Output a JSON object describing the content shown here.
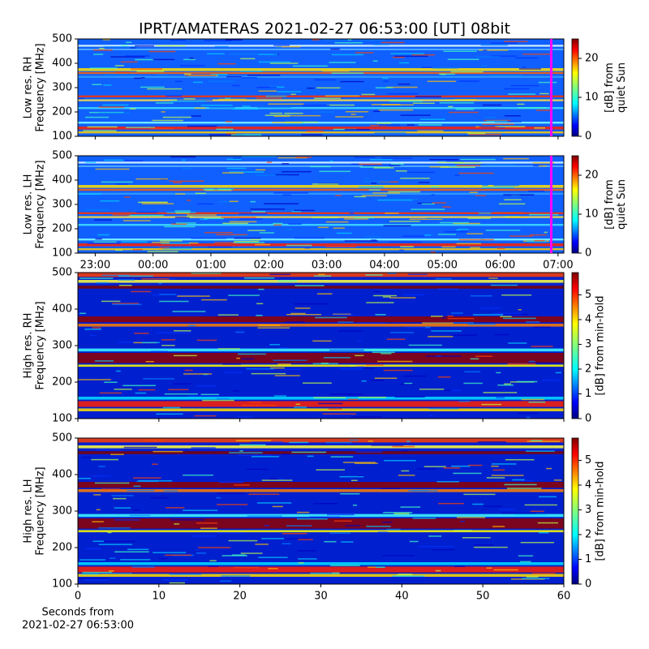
{
  "chart_data": [
    {
      "type": "heatmap",
      "title": "IPRT/AMATERAS 2021-02-27 06:53:00 [UT]   08bit",
      "ylabel": [
        "Low res. RH",
        "Frequency [MHz]"
      ],
      "ylim": [
        100,
        500
      ],
      "yticks": [
        100,
        200,
        300,
        400,
        500
      ],
      "xlim": [
        22.7,
        31.1
      ],
      "xticks": [
        23,
        24,
        25,
        26,
        27,
        28,
        29,
        30,
        31
      ],
      "xtick_labels": false,
      "marker_x": 30.883,
      "marker_color": "#ff00ff",
      "colorbar_label": [
        "[dB] from",
        "quiet Sun"
      ],
      "colorbar_lim": [
        0,
        25
      ],
      "colorbar_ticks": [
        0,
        10,
        20
      ]
    },
    {
      "type": "heatmap",
      "ylabel": [
        "Low res. LH",
        "Frequency [MHz]"
      ],
      "ylim": [
        100,
        500
      ],
      "yticks": [
        100,
        200,
        300,
        400,
        500
      ],
      "xlim": [
        22.7,
        31.1
      ],
      "xticks": [
        {
          "value": 23,
          "label": "23:00"
        },
        {
          "value": 24,
          "label": "00:00"
        },
        {
          "value": 25,
          "label": "01:00"
        },
        {
          "value": 26,
          "label": "02:00"
        },
        {
          "value": 27,
          "label": "03:00"
        },
        {
          "value": 28,
          "label": "04:00"
        },
        {
          "value": 29,
          "label": "05:00"
        },
        {
          "value": 30,
          "label": "06:00"
        },
        {
          "value": 31,
          "label": "07:00"
        }
      ],
      "xtick_labels": true,
      "marker_x": 30.883,
      "marker_color": "#ff00ff",
      "colorbar_label": [
        "[dB] from",
        "quiet Sun"
      ],
      "colorbar_lim": [
        0,
        25
      ],
      "colorbar_ticks": [
        0,
        10,
        20
      ]
    },
    {
      "type": "heatmap",
      "ylabel": [
        "High res. RH",
        "Frequency [MHz]"
      ],
      "ylim": [
        100,
        500
      ],
      "yticks": [
        100,
        200,
        300,
        400,
        500
      ],
      "xlim": [
        0,
        60
      ],
      "xticks": [
        0,
        10,
        20,
        30,
        40,
        50,
        60
      ],
      "xtick_labels": false,
      "colorbar_label": [
        "[dB] from min-hold"
      ],
      "colorbar_lim": [
        0,
        5.9
      ],
      "colorbar_ticks": [
        0,
        1,
        2,
        3,
        4,
        5
      ]
    },
    {
      "type": "heatmap",
      "ylabel": [
        "High res. LH",
        "Frequency [MHz]"
      ],
      "ylim": [
        100,
        500
      ],
      "yticks": [
        100,
        200,
        300,
        400,
        500
      ],
      "xlim": [
        0,
        60
      ],
      "xticks": [
        0,
        10,
        20,
        30,
        40,
        50,
        60
      ],
      "xtick_labels": true,
      "xlabel": [
        "Seconds from",
        "2021-02-27 06:53:00"
      ],
      "colorbar_label": [
        "[dB] from min-hold"
      ],
      "colorbar_lim": [
        0,
        5.9
      ],
      "colorbar_ticks": [
        0,
        1,
        2,
        3,
        4,
        5
      ]
    }
  ]
}
